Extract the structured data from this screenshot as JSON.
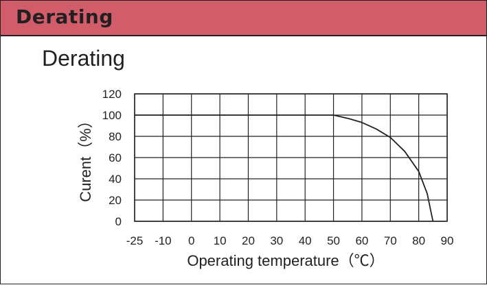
{
  "header": {
    "title": "Derating"
  },
  "chart_data": {
    "type": "line",
    "title": "Derating",
    "xlabel": "Operating temperature（℃）",
    "ylabel": "Curent（%）",
    "x_ticks": [
      -25,
      -10,
      0,
      10,
      20,
      30,
      40,
      50,
      60,
      70,
      80,
      90
    ],
    "y_ticks": [
      0,
      20,
      40,
      60,
      80,
      100,
      120
    ],
    "xlim": [
      -25,
      90
    ],
    "ylim": [
      0,
      120
    ],
    "grid": true,
    "series": [
      {
        "x": [
          -25,
          50,
          55,
          60,
          65,
          70,
          75,
          80,
          83,
          85
        ],
        "y": [
          100,
          100,
          97,
          93,
          87,
          79,
          66,
          47,
          26,
          0
        ]
      }
    ]
  },
  "colors": {
    "header_bg": "#d25d6a",
    "ink": "#231f20"
  }
}
